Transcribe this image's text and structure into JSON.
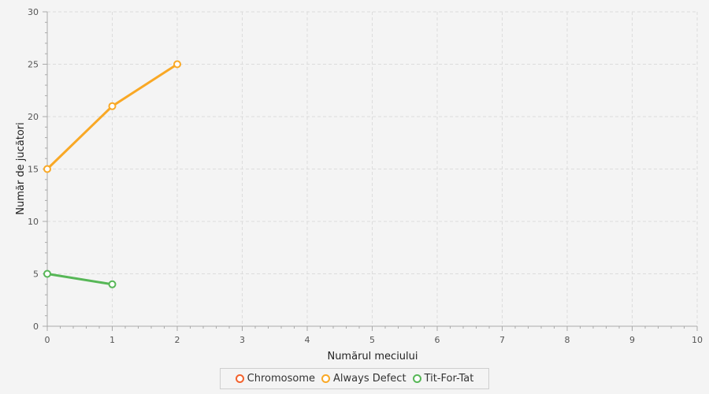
{
  "chart_data": {
    "type": "line",
    "title": "",
    "xlabel": "Numărul meciului",
    "ylabel": "Număr de jucători",
    "xlim": [
      0,
      10
    ],
    "ylim": [
      0,
      30
    ],
    "x_ticks": [
      0,
      1,
      2,
      3,
      4,
      5,
      6,
      7,
      8,
      9,
      10
    ],
    "y_ticks": [
      0,
      5,
      10,
      15,
      20,
      25,
      30
    ],
    "grid": true,
    "legend_position": "bottom-center",
    "series": [
      {
        "name": "Chromosome",
        "color": "#f3622d",
        "x": [],
        "y": []
      },
      {
        "name": "Always Defect",
        "color": "#f9a825",
        "x": [
          0,
          1,
          2
        ],
        "y": [
          15,
          21,
          25
        ]
      },
      {
        "name": "Tit-For-Tat",
        "color": "#57b757",
        "x": [
          0,
          1
        ],
        "y": [
          5,
          4
        ]
      }
    ]
  }
}
